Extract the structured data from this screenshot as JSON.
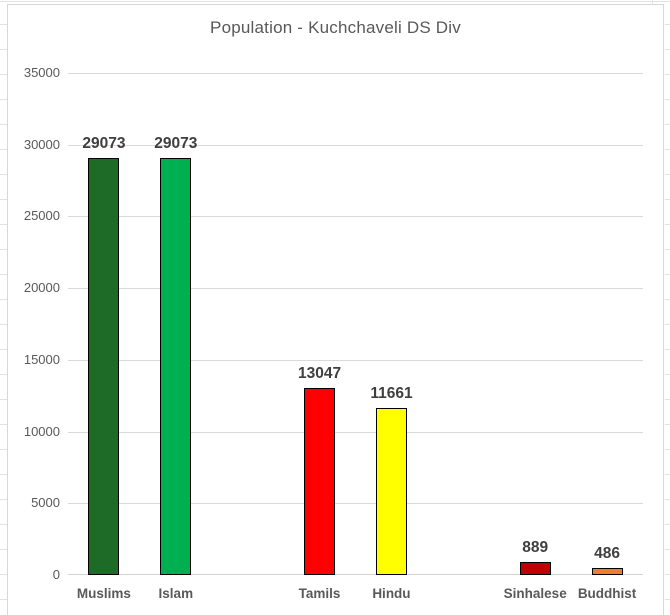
{
  "chart_title": "Population - Kuchchaveli DS Div",
  "chart_data": {
    "type": "bar",
    "title": "Population - Kuchchaveli DS Div",
    "categories": [
      "Muslims",
      "Islam",
      "Tamils",
      "Hindu",
      "Sinhalese",
      "Buddhist"
    ],
    "values": [
      29073,
      29073,
      13047,
      11661,
      889,
      486
    ],
    "bars": [
      {
        "label": "Muslims",
        "value": 29073,
        "color": "#1e6b28",
        "slot": 0
      },
      {
        "label": "Islam",
        "value": 29073,
        "color": "#00b050",
        "slot": 1
      },
      {
        "label": "Tamils",
        "value": 13047,
        "color": "#ff0000",
        "slot": 3
      },
      {
        "label": "Hindu",
        "value": 11661,
        "color": "#ffff00",
        "slot": 4
      },
      {
        "label": "Sinhalese",
        "value": 889,
        "color": "#c00000",
        "slot": 6
      },
      {
        "label": "Buddhist",
        "value": 486,
        "color": "#ed7d31",
        "slot": 7
      }
    ],
    "slot_count": 8,
    "ylim": [
      0,
      35000
    ],
    "yticks": [
      0,
      5000,
      10000,
      15000,
      20000,
      25000,
      30000,
      35000
    ],
    "xlabel": "",
    "ylabel": "",
    "grid": true,
    "legend_position": "none",
    "data_labels": true,
    "bar_outline_color": "#000000",
    "gridline_color": "#d9d9d9",
    "title_color": "#595959",
    "axis_label_color": "#595959",
    "data_label_color": "#3f3f3f"
  }
}
